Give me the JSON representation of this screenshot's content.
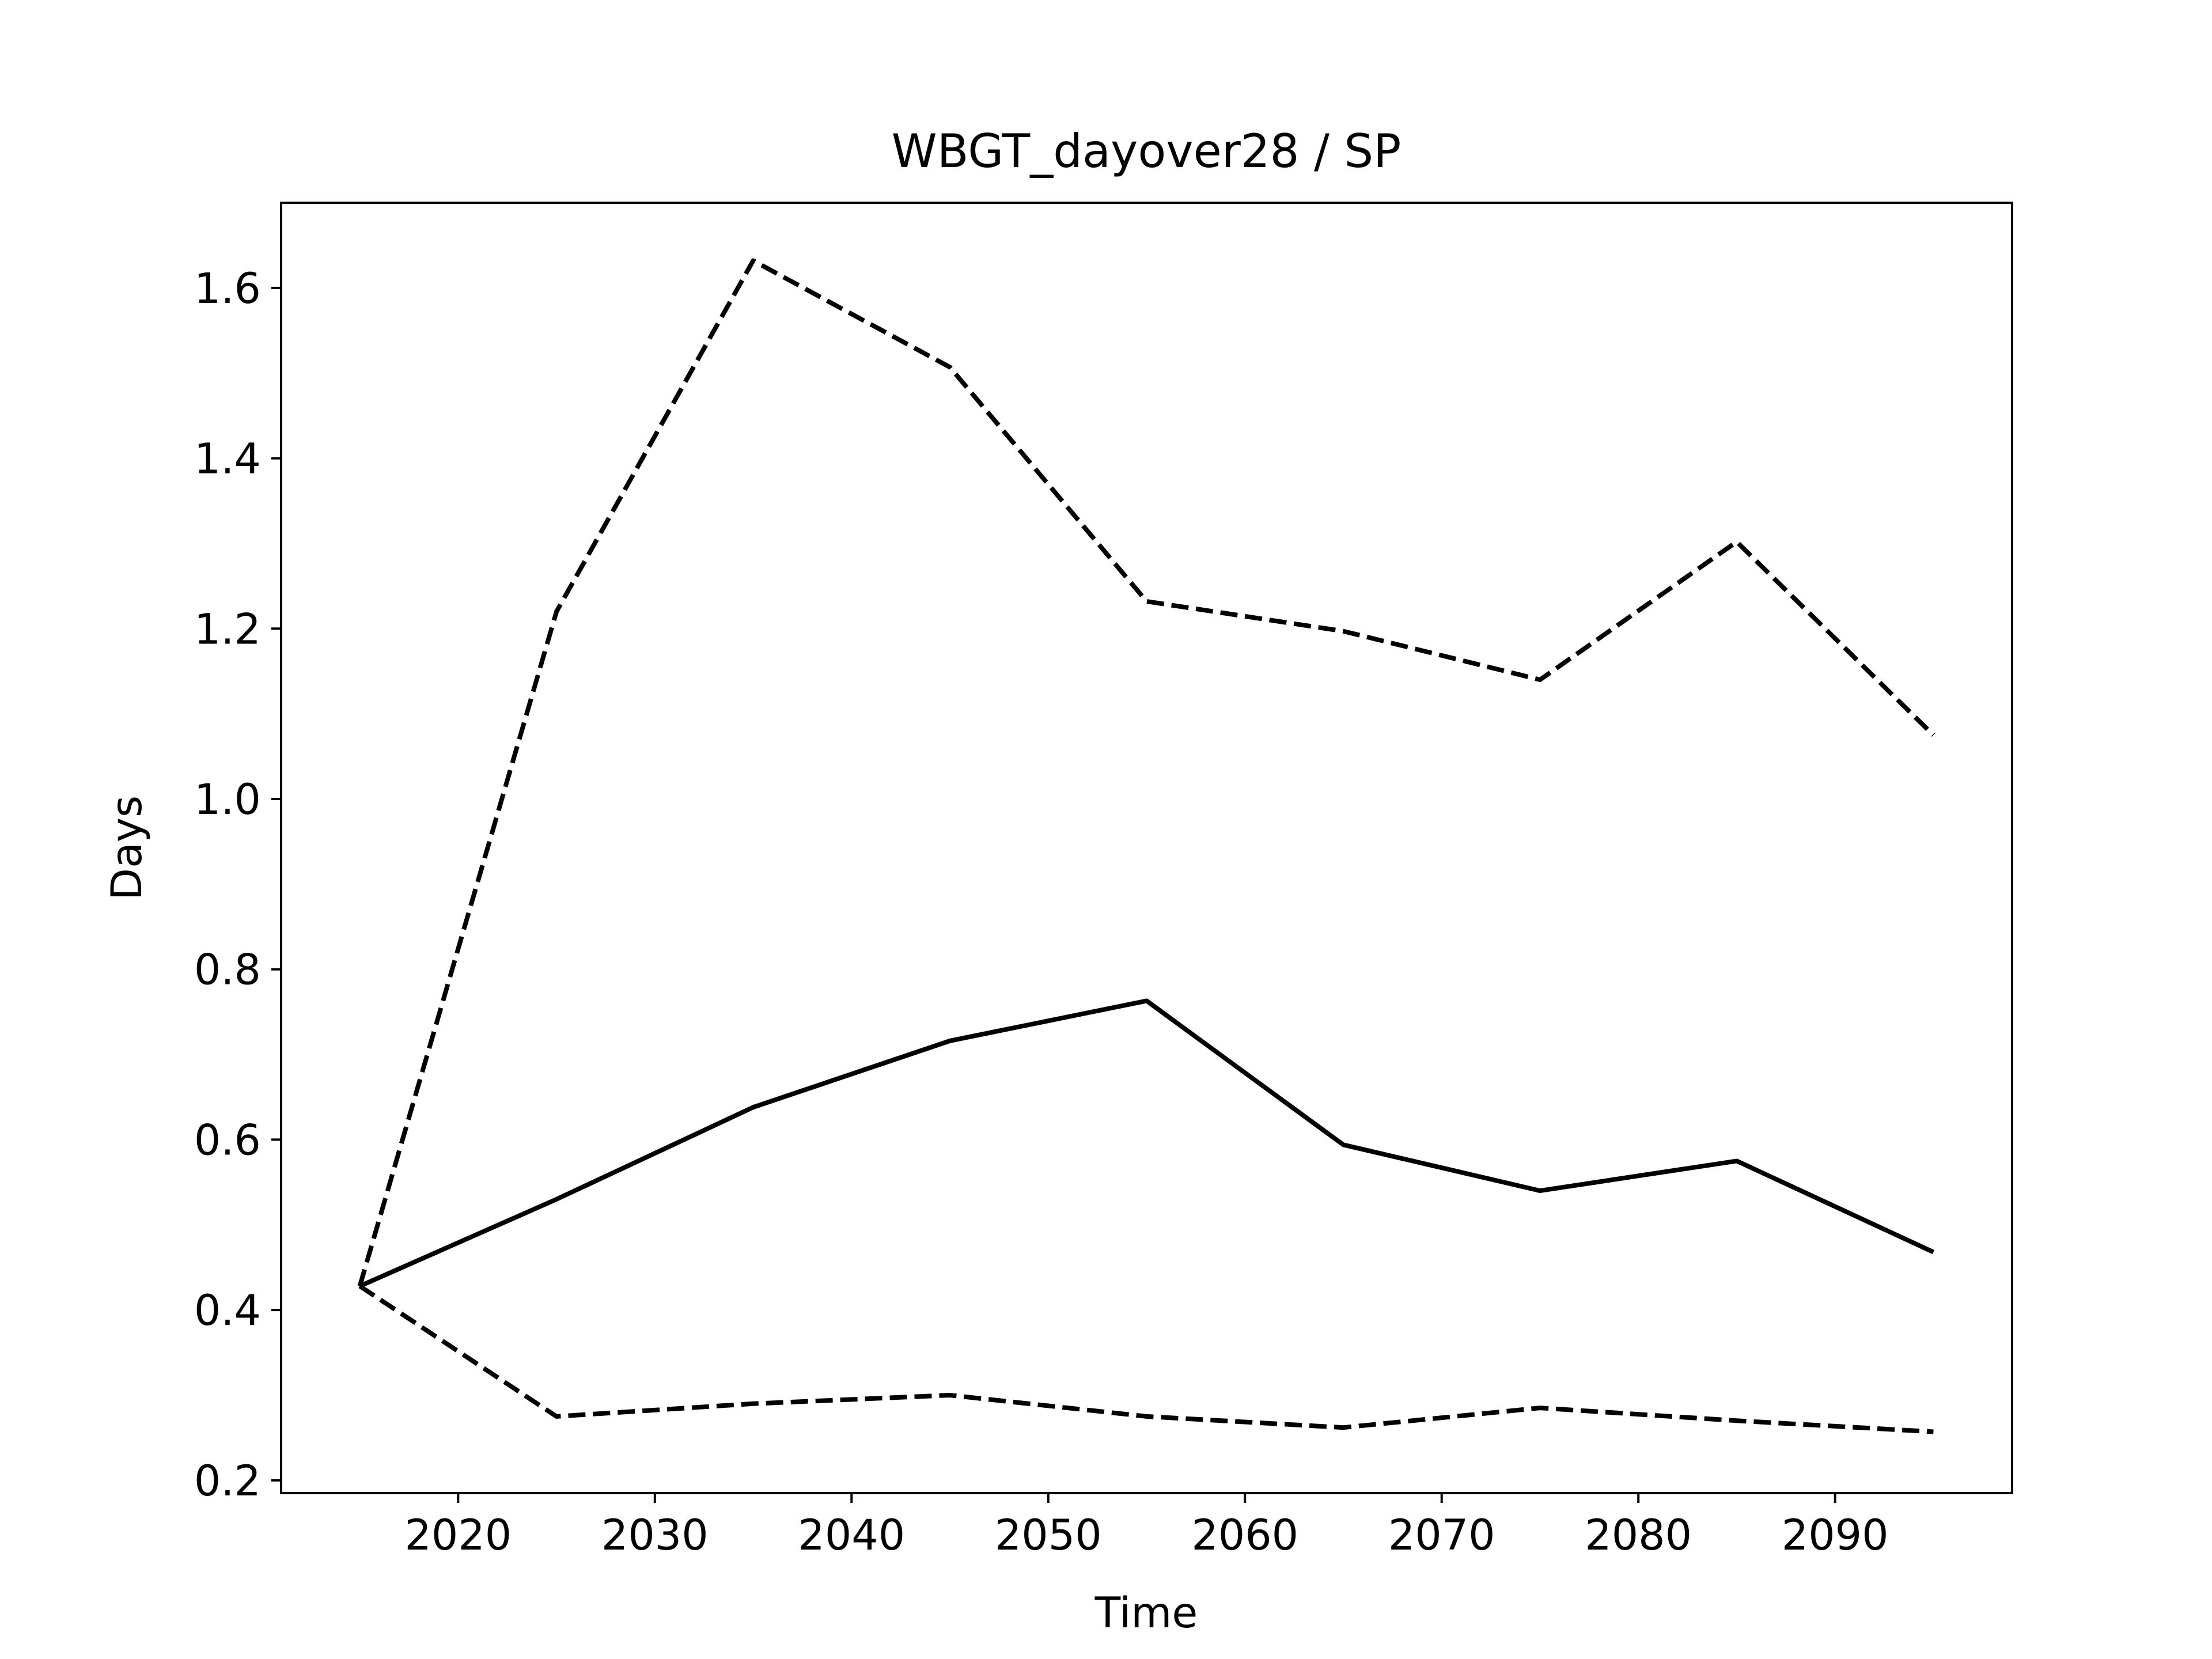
{
  "chart_data": {
    "type": "line",
    "title": "WBGT_dayover28 / SP",
    "xlabel": "Time",
    "ylabel": "Days",
    "xlim": [
      2011,
      2099
    ],
    "ylim": [
      0.185,
      1.7
    ],
    "xticks": [
      2020,
      2030,
      2040,
      2050,
      2060,
      2070,
      2080,
      2090
    ],
    "yticks": [
      0.2,
      0.4,
      0.6,
      0.8,
      1.0,
      1.2,
      1.4,
      1.6
    ],
    "ytick_labels": [
      "0.2",
      "0.4",
      "0.6",
      "0.8",
      "1.0",
      "1.2",
      "1.4",
      "1.6"
    ],
    "grid": false,
    "legend": "none",
    "line_color": "#000000",
    "x": [
      2015,
      2025,
      2035,
      2045,
      2055,
      2065,
      2075,
      2085,
      2095
    ],
    "series": [
      {
        "style": "dashed",
        "values": [
          0.428,
          1.22,
          1.632,
          1.507,
          1.232,
          1.197,
          1.14,
          1.302,
          1.075
        ]
      },
      {
        "style": "solid",
        "values": [
          0.428,
          0.53,
          0.638,
          0.716,
          0.763,
          0.594,
          0.54,
          0.575,
          0.468
        ]
      },
      {
        "style": "dashed",
        "values": [
          0.428,
          0.275,
          0.29,
          0.3,
          0.275,
          0.262,
          0.285,
          0.27,
          0.257
        ]
      }
    ]
  }
}
